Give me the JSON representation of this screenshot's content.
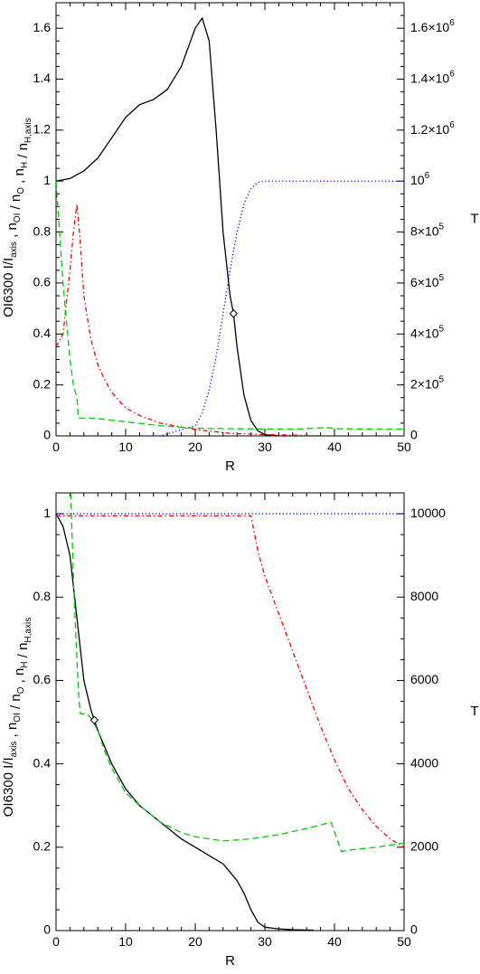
{
  "chart_data": [
    {
      "type": "line",
      "xlabel": "R",
      "ylabel_left": "OI6300 I/I_axis ,  n_OI / n_O ,  n_H / n_H,axis",
      "ylabel_right": "T",
      "xlim": [
        0,
        50
      ],
      "ylim_left": [
        0,
        1.7
      ],
      "ylim_right": [
        0,
        1700000
      ],
      "x_ticks": [
        "0",
        "10",
        "20",
        "30",
        "40",
        "50"
      ],
      "y_ticks_left": [
        "0",
        "0.2",
        "0.4",
        "0.6",
        "0.8",
        "1",
        "1.2",
        "1.4",
        "1.6"
      ],
      "y_ticks_right": [
        "0",
        "2×10^5",
        "4×10^5",
        "6×10^5",
        "8×10^5",
        "10^6",
        "1.2×10^6",
        "1.4×10^6",
        "1.6×10^6"
      ],
      "marker": {
        "x": 25.5,
        "y": 0.48
      },
      "series": [
        {
          "style": "solid",
          "color": "#000000",
          "axis": "left",
          "x": [
            0,
            2,
            4,
            6,
            8,
            10,
            12,
            14,
            16,
            18,
            20,
            21,
            22,
            23,
            24,
            25,
            25.5,
            26,
            27,
            28,
            29,
            30,
            32
          ],
          "y": [
            1.0,
            1.01,
            1.04,
            1.09,
            1.17,
            1.25,
            1.3,
            1.32,
            1.36,
            1.45,
            1.6,
            1.64,
            1.55,
            1.2,
            0.8,
            0.55,
            0.48,
            0.35,
            0.16,
            0.06,
            0.02,
            0.005,
            0.0
          ]
        },
        {
          "style": "dotted",
          "color": "#0000ff",
          "axis": "right",
          "x": [
            0,
            15,
            20,
            21,
            22,
            23,
            24,
            25,
            26,
            27,
            28,
            29,
            30,
            35,
            40,
            50
          ],
          "y": [
            0,
            0,
            40000,
            90000,
            180000,
            310000,
            480000,
            650000,
            800000,
            910000,
            970000,
            995000,
            1000000,
            1000000,
            1000000,
            1000000
          ]
        },
        {
          "style": "dashdot",
          "color": "#ff0000",
          "axis": "left",
          "x": [
            0,
            1,
            2,
            2.5,
            3,
            3.5,
            4,
            5,
            6,
            7,
            8,
            10,
            12,
            15,
            20,
            25,
            30,
            40
          ],
          "y": [
            0.35,
            0.4,
            0.65,
            0.8,
            0.91,
            0.75,
            0.55,
            0.38,
            0.28,
            0.22,
            0.17,
            0.11,
            0.08,
            0.05,
            0.025,
            0.01,
            0.005,
            0.0
          ]
        },
        {
          "style": "dashed",
          "color": "#00cc00",
          "axis": "left",
          "x": [
            0,
            0.5,
            1,
            1.5,
            2,
            2.5,
            3,
            3.2,
            5,
            7,
            10,
            15,
            20,
            25,
            30,
            35,
            39,
            40,
            45,
            50
          ],
          "y": [
            1.0,
            0.8,
            0.6,
            0.45,
            0.3,
            0.2,
            0.15,
            0.07,
            0.07,
            0.065,
            0.055,
            0.04,
            0.03,
            0.028,
            0.027,
            0.027,
            0.033,
            0.028,
            0.027,
            0.027
          ]
        }
      ]
    },
    {
      "type": "line",
      "xlabel": "R",
      "ylabel_left": "OI6300 I/I_axis ,  n_OI / n_O ,  n_H / n_H,axis",
      "ylabel_right": "T",
      "xlim": [
        0,
        50
      ],
      "ylim_left": [
        0,
        1.05
      ],
      "ylim_right": [
        0,
        10500
      ],
      "x_ticks": [
        "0",
        "10",
        "20",
        "30",
        "40",
        "50"
      ],
      "y_ticks_left": [
        "0",
        "0.2",
        "0.4",
        "0.6",
        "0.8",
        "1"
      ],
      "y_ticks_right": [
        "0",
        "2000",
        "4000",
        "6000",
        "8000",
        "10000"
      ],
      "marker": {
        "x": 5.5,
        "y": 0.505
      },
      "series": [
        {
          "style": "solid",
          "color": "#000000",
          "axis": "left",
          "x": [
            0,
            1,
            2,
            3,
            4,
            5,
            6,
            8,
            10,
            12,
            15,
            18,
            20,
            22,
            24,
            26,
            27,
            28,
            29,
            30,
            32,
            34,
            37
          ],
          "y": [
            1.0,
            0.97,
            0.9,
            0.75,
            0.6,
            0.53,
            0.48,
            0.4,
            0.34,
            0.3,
            0.26,
            0.22,
            0.2,
            0.18,
            0.16,
            0.12,
            0.09,
            0.05,
            0.02,
            0.008,
            0.004,
            0.002,
            0.001
          ]
        },
        {
          "style": "dotted",
          "color": "#0000ff",
          "axis": "right",
          "x": [
            0,
            10,
            20,
            30,
            40,
            50
          ],
          "y": [
            10000,
            10000,
            10000,
            10000,
            10000,
            10000
          ]
        },
        {
          "style": "dashdot",
          "color": "#ff0000",
          "axis": "left",
          "x": [
            0,
            5,
            10,
            20,
            28,
            29,
            30,
            32,
            34,
            36,
            38,
            40,
            42,
            44,
            46,
            48,
            50
          ],
          "y": [
            0.995,
            0.995,
            0.995,
            0.995,
            0.995,
            0.91,
            0.85,
            0.76,
            0.67,
            0.58,
            0.49,
            0.41,
            0.34,
            0.29,
            0.25,
            0.22,
            0.2
          ]
        },
        {
          "style": "dashed",
          "color": "#00cc00",
          "axis": "left",
          "x": [
            2.1,
            2.3,
            2.6,
            3.0,
            3.3,
            3.5,
            4.5,
            5,
            6,
            7,
            8,
            10,
            12,
            15,
            18,
            20,
            24,
            28,
            32,
            36,
            39.5,
            41,
            43,
            46,
            50
          ],
          "y": [
            1.05,
            0.95,
            0.8,
            0.65,
            0.55,
            0.52,
            0.52,
            0.51,
            0.48,
            0.43,
            0.39,
            0.33,
            0.3,
            0.26,
            0.235,
            0.225,
            0.215,
            0.22,
            0.23,
            0.245,
            0.26,
            0.19,
            0.195,
            0.2,
            0.21
          ]
        }
      ]
    }
  ]
}
